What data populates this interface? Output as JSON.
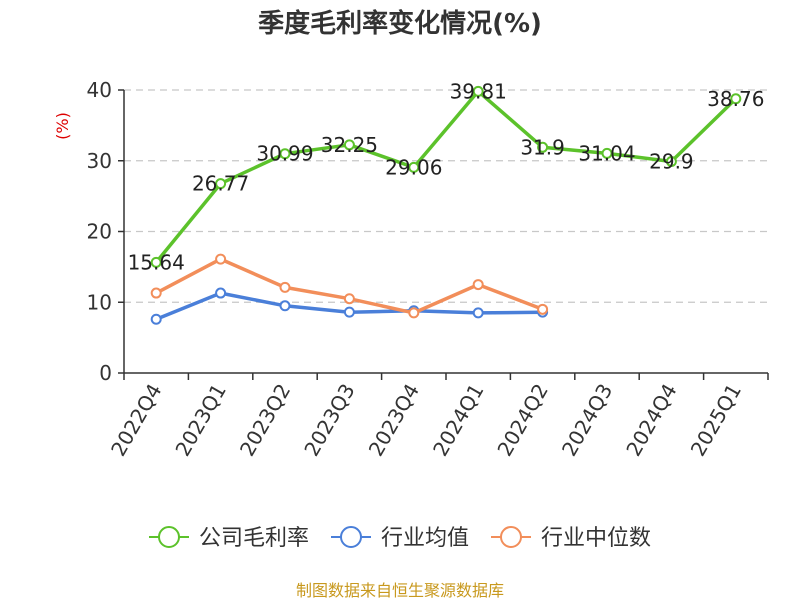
{
  "chart_data": {
    "type": "line",
    "title": "季度毛利率变化情况(%)",
    "ylabel": "(%)",
    "ylim": [
      0,
      40
    ],
    "yticks": [
      0,
      10,
      20,
      30,
      40
    ],
    "grid": true,
    "legend_position": "bottom",
    "categories": [
      "2022Q4",
      "2023Q1",
      "2023Q2",
      "2023Q3",
      "2023Q4",
      "2024Q1",
      "2024Q2",
      "2024Q3",
      "2024Q4",
      "2025Q1"
    ],
    "series": [
      {
        "name": "公司毛利率",
        "color": "#5cc22b",
        "show_labels": true,
        "values": [
          15.64,
          26.77,
          30.99,
          32.25,
          29.06,
          39.81,
          31.9,
          31.04,
          29.9,
          38.76
        ],
        "labels": [
          "15.64",
          "26.77",
          "30.99",
          "32.25",
          "29.06",
          "39.81",
          "31.9",
          "31.04",
          "29.9",
          "38.76"
        ]
      },
      {
        "name": "行业均值",
        "color": "#4a7fd9",
        "show_labels": false,
        "values": [
          7.6,
          11.3,
          9.5,
          8.6,
          8.8,
          8.5,
          8.6,
          null,
          null,
          null
        ]
      },
      {
        "name": "行业中位数",
        "color": "#f28e5a",
        "show_labels": false,
        "values": [
          11.3,
          16.1,
          12.1,
          10.5,
          8.5,
          12.5,
          9.0,
          null,
          null,
          null
        ]
      }
    ]
  },
  "source": "制图数据来自恒生聚源数据库"
}
